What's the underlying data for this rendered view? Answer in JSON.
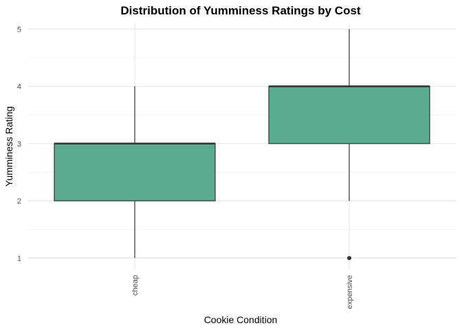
{
  "chart_data": {
    "type": "boxplot",
    "title": "Distribution of Yumminess Ratings by Cost",
    "xlabel": "Cookie Condition",
    "ylabel": "Yumminess Rating",
    "categories": [
      "cheap",
      "expensive"
    ],
    "ylim": [
      0.8,
      5.1
    ],
    "yticks": [
      "1",
      "2",
      "3",
      "4",
      "5"
    ],
    "boxes": [
      {
        "category": "cheap",
        "min": 1,
        "q1": 2,
        "median": 3,
        "q3": 3,
        "max": 4,
        "outliers": []
      },
      {
        "category": "expensive",
        "min": 2,
        "q1": 3,
        "median": 4,
        "q3": 4,
        "max": 5,
        "outliers": [
          1
        ]
      }
    ],
    "box_fill": "#5aa991",
    "box_stroke": "#333333",
    "grid": true,
    "tick_label_orientation": "vertical"
  }
}
